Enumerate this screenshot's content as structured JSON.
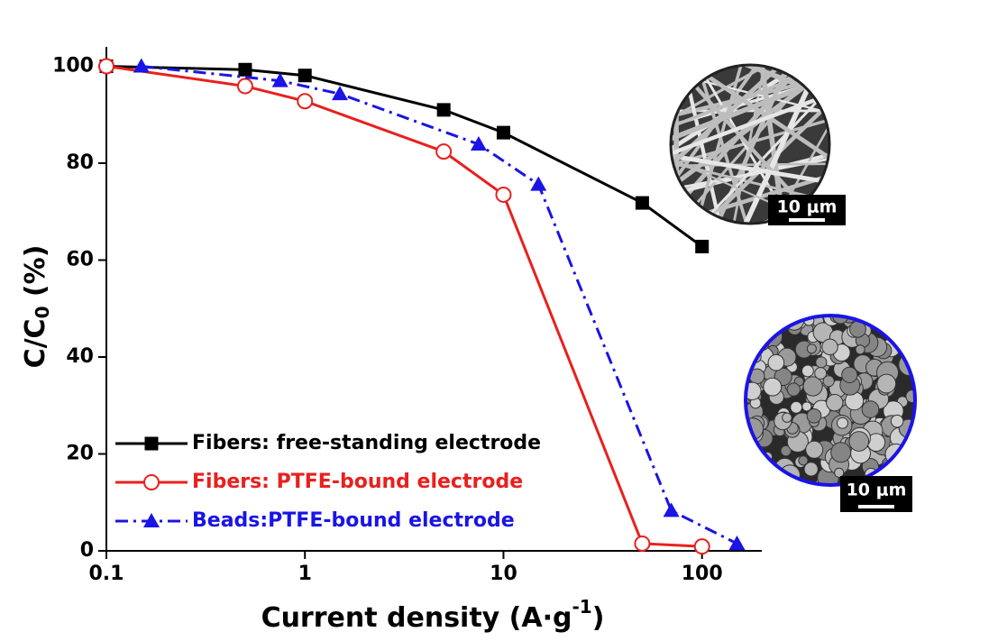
{
  "chart_data": {
    "type": "line",
    "xlabel": [
      "Current density (A·g",
      "-1",
      ")"
    ],
    "ylabel": [
      "C/C",
      "0",
      " (%)"
    ],
    "log_x": true,
    "xlim": [
      0.1,
      200
    ],
    "xticks": [
      0.1,
      1,
      10,
      100
    ],
    "ylim": [
      0,
      104
    ],
    "yticks": [
      0,
      20,
      40,
      60,
      80,
      100
    ],
    "legend": "lower left",
    "series": [
      {
        "name": "Fibers: free-standing electrode",
        "color": "#000000",
        "marker": "square",
        "dash": "solid",
        "x": [
          0.1,
          0.5,
          1,
          5,
          10,
          50,
          100
        ],
        "values": [
          100,
          99.3,
          98.1,
          91,
          86.3,
          71.8,
          62.8
        ]
      },
      {
        "name": "Fibers: PTFE-bound electrode",
        "color": "#e8201e",
        "marker": "circle-open",
        "dash": "solid",
        "x": [
          0.1,
          0.5,
          1,
          5,
          10,
          50,
          100
        ],
        "values": [
          100,
          95.9,
          92.8,
          82.4,
          73.5,
          1.5,
          0.9
        ]
      },
      {
        "name": "Beads:PTFE-bound electrode",
        "color": "#1a14e6",
        "marker": "triangle",
        "dash": "dashdot",
        "x": [
          0.15,
          0.75,
          1.5,
          7.5,
          15,
          70,
          150
        ],
        "values": [
          100,
          97,
          94.3,
          83.9,
          75.6,
          8.3,
          1.5
        ]
      }
    ]
  },
  "insets": [
    {
      "scale_bar": "10 μm"
    },
    {
      "scale_bar": "10 μm"
    }
  ]
}
